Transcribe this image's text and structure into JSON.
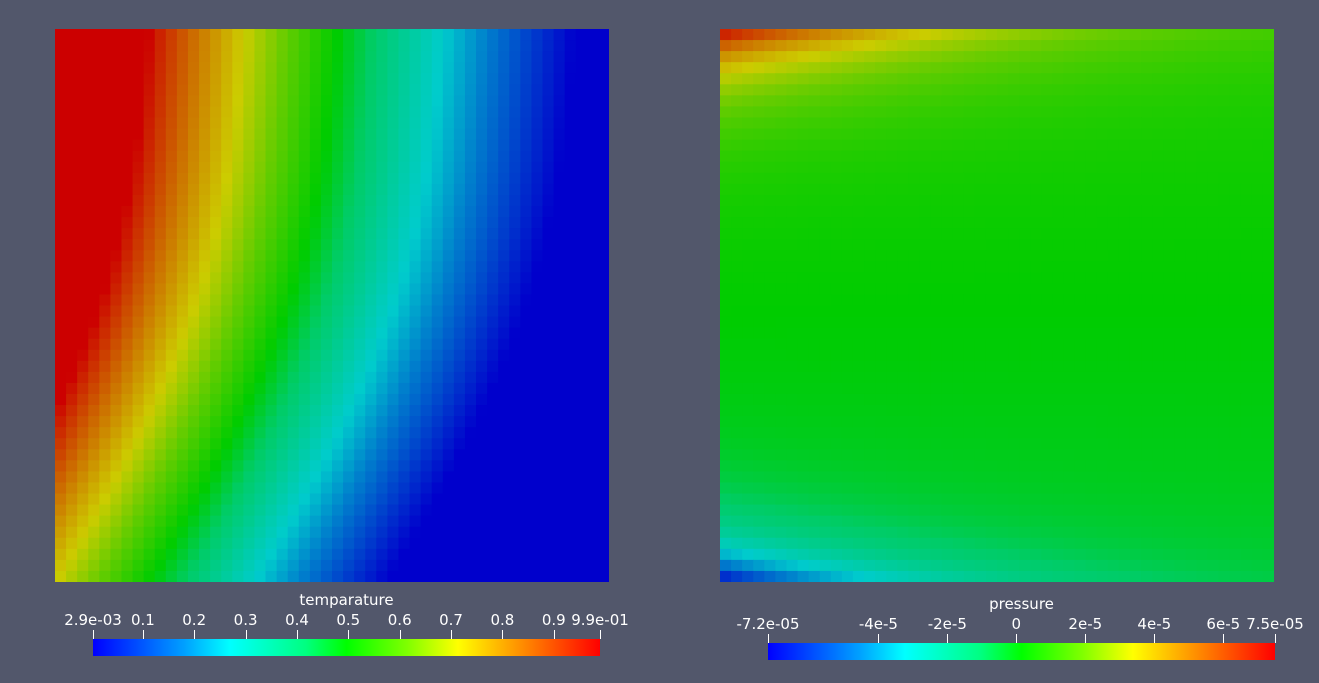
{
  "panels": [
    {
      "id": "temperature",
      "field": "temperature",
      "colorbar": {
        "title": "temparature",
        "range": [
          0.0029,
          0.99
        ],
        "ticks": [
          {
            "label": "2.9e-03",
            "value": 0.0029
          },
          {
            "label": "0.1",
            "value": 0.1
          },
          {
            "label": "0.2",
            "value": 0.2
          },
          {
            "label": "0.3",
            "value": 0.3
          },
          {
            "label": "0.4",
            "value": 0.4
          },
          {
            "label": "0.5",
            "value": 0.5
          },
          {
            "label": "0.6",
            "value": 0.6
          },
          {
            "label": "0.7",
            "value": 0.7
          },
          {
            "label": "0.8",
            "value": 0.8
          },
          {
            "label": "0.9",
            "value": 0.9
          },
          {
            "label": "9.9e-01",
            "value": 0.99
          }
        ]
      }
    },
    {
      "id": "pressure",
      "field": "pressure",
      "colorbar": {
        "title": "pressure",
        "range": [
          -7.2e-05,
          7.5e-05
        ],
        "ticks": [
          {
            "label": "-7.2e-05",
            "value": -7.2e-05
          },
          {
            "label": "-4e-5",
            "value": -4e-05
          },
          {
            "label": "-2e-5",
            "value": -2e-05
          },
          {
            "label": "0",
            "value": 0
          },
          {
            "label": "2e-5",
            "value": 2e-05
          },
          {
            "label": "4e-5",
            "value": 4e-05
          },
          {
            "label": "6e-5",
            "value": 6e-05
          },
          {
            "label": "7.5e-05",
            "value": 7.5e-05
          }
        ]
      }
    }
  ],
  "colors": {
    "background": "#52576b",
    "colormap": [
      "#0000ff",
      "#00a0ff",
      "#00ffff",
      "#00ff80",
      "#00ff00",
      "#80ff00",
      "#ffff00",
      "#ff8000",
      "#ff0000"
    ]
  }
}
